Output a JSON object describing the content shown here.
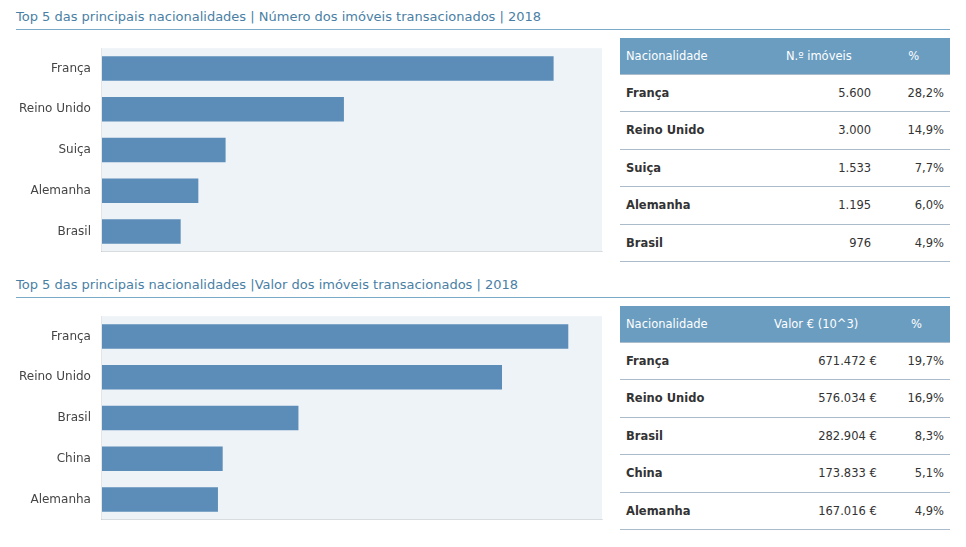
{
  "chart_data": [
    {
      "type": "bar",
      "orientation": "horizontal",
      "title": "Top 5 das principais nacionalidades | Número dos imóveis transacionados | 2018",
      "categories": [
        "França",
        "Reino Unido",
        "Suiça",
        "Alemanha",
        "Brasil"
      ],
      "values": [
        5600,
        3000,
        1533,
        1195,
        976
      ],
      "color": "#5b8db8",
      "xlim": [
        0,
        6200
      ],
      "grid": false,
      "tick_labels": "y",
      "table": {
        "header": [
          "Nacionalidade",
          "N.º imóveis",
          "%"
        ],
        "rows": [
          [
            "França",
            "5.600",
            "28,2%"
          ],
          [
            "Reino Unido",
            "3.000",
            "14,9%"
          ],
          [
            "Suiça",
            "1.533",
            "7,7%"
          ],
          [
            "Alemanha",
            "1.195",
            "6,0%"
          ],
          [
            "Brasil",
            "976",
            "4,9%"
          ]
        ]
      }
    },
    {
      "type": "bar",
      "orientation": "horizontal",
      "title": "Top 5 das principais nacionalidades |Valor dos imóveis transacionados | 2018",
      "categories": [
        "França",
        "Reino Unido",
        "Brasil",
        "China",
        "Alemanha"
      ],
      "values": [
        671472,
        576034,
        282904,
        173833,
        167016
      ],
      "color": "#5b8db8",
      "xlim": [
        0,
        720000
      ],
      "grid": false,
      "tick_labels": "y",
      "table": {
        "header": [
          "Nacionalidade",
          "Valor € (10^3)",
          "%"
        ],
        "rows": [
          [
            "França",
            "671.472 €",
            "19,7%"
          ],
          [
            "Reino Unido",
            "576.034 €",
            "16,9%"
          ],
          [
            "Brasil",
            "282.904 €",
            "8,3%"
          ],
          [
            "China",
            "173.833 €",
            "5,1%"
          ],
          [
            "Alemanha",
            "167.016 €",
            "4,9%"
          ]
        ]
      }
    }
  ]
}
